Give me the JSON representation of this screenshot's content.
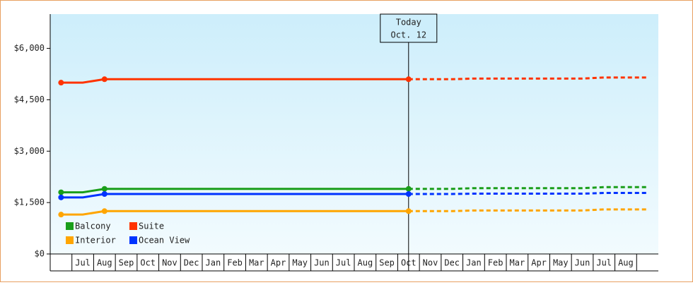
{
  "chart_data": {
    "type": "line",
    "categories": [
      null,
      "Jul",
      "Aug",
      "Sep",
      "Oct",
      "Nov",
      "Dec",
      "Jan",
      "Feb",
      "Mar",
      "Apr",
      "May",
      "Jun",
      "Jul",
      "Aug",
      "Sep",
      "Oct",
      "Nov",
      "Dec",
      "Jan",
      "Feb",
      "Mar",
      "Apr",
      "May",
      "Jun",
      "Jul",
      "Aug",
      null
    ],
    "ylim": [
      0,
      7000
    ],
    "yticks": [
      {
        "value": 0,
        "label": "$0"
      },
      {
        "value": 1500,
        "label": "$1,500"
      },
      {
        "value": 3000,
        "label": "$3,000"
      },
      {
        "value": 4500,
        "label": "$4,500"
      },
      {
        "value": 6000,
        "label": "$6,000"
      }
    ],
    "today_label": [
      "Today",
      "Oct. 12"
    ],
    "series": [
      {
        "name": "Balcony",
        "color": "#1a9e1a",
        "values": [
          1800,
          1800,
          1900,
          1900,
          1900,
          1900,
          1900,
          1900,
          1900,
          1900,
          1900,
          1900,
          1900,
          1900,
          1900,
          1900,
          1900,
          null,
          null,
          null,
          null,
          null,
          null,
          null,
          null,
          null,
          null,
          null
        ],
        "forecast": [
          null,
          null,
          null,
          null,
          null,
          null,
          null,
          null,
          null,
          null,
          null,
          null,
          null,
          null,
          null,
          null,
          1900,
          1900,
          1900,
          1920,
          1920,
          1920,
          1920,
          1920,
          1920,
          1950,
          1950,
          1950
        ]
      },
      {
        "name": "Suite",
        "color": "#ff3300",
        "values": [
          5000,
          5000,
          5100,
          5100,
          5100,
          5100,
          5100,
          5100,
          5100,
          5100,
          5100,
          5100,
          5100,
          5100,
          5100,
          5100,
          5100,
          null,
          null,
          null,
          null,
          null,
          null,
          null,
          null,
          null,
          null,
          null
        ],
        "forecast": [
          null,
          null,
          null,
          null,
          null,
          null,
          null,
          null,
          null,
          null,
          null,
          null,
          null,
          null,
          null,
          null,
          5100,
          5100,
          5100,
          5120,
          5120,
          5120,
          5120,
          5120,
          5120,
          5150,
          5150,
          5150
        ]
      },
      {
        "name": "Interior",
        "color": "#ffa500",
        "values": [
          1150,
          1150,
          1250,
          1250,
          1250,
          1250,
          1250,
          1250,
          1250,
          1250,
          1250,
          1250,
          1250,
          1250,
          1250,
          1250,
          1250,
          null,
          null,
          null,
          null,
          null,
          null,
          null,
          null,
          null,
          null,
          null
        ],
        "forecast": [
          null,
          null,
          null,
          null,
          null,
          null,
          null,
          null,
          null,
          null,
          null,
          null,
          null,
          null,
          null,
          null,
          1250,
          1250,
          1250,
          1270,
          1270,
          1270,
          1270,
          1270,
          1270,
          1300,
          1300,
          1300
        ]
      },
      {
        "name": "Ocean View",
        "color": "#0033ff",
        "values": [
          1650,
          1650,
          1750,
          1750,
          1750,
          1750,
          1750,
          1750,
          1750,
          1750,
          1750,
          1750,
          1750,
          1750,
          1750,
          1750,
          1750,
          null,
          null,
          null,
          null,
          null,
          null,
          null,
          null,
          null,
          null,
          null
        ],
        "forecast": [
          null,
          null,
          null,
          null,
          null,
          null,
          null,
          null,
          null,
          null,
          null,
          null,
          null,
          null,
          null,
          null,
          1750,
          1750,
          1750,
          1760,
          1760,
          1760,
          1760,
          1760,
          1760,
          1780,
          1780,
          1780
        ]
      }
    ]
  }
}
